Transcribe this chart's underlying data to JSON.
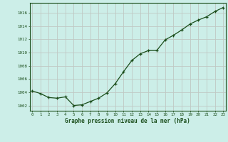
{
  "hours": [
    0,
    1,
    2,
    3,
    4,
    5,
    6,
    7,
    8,
    9,
    10,
    11,
    12,
    13,
    14,
    15,
    16,
    17,
    18,
    19,
    20,
    21,
    22,
    23
  ],
  "pressure": [
    1004.2,
    1003.8,
    1003.2,
    1003.1,
    1003.3,
    1002.0,
    1002.1,
    1002.6,
    1003.1,
    1003.9,
    1005.3,
    1007.1,
    1008.8,
    1009.8,
    1010.3,
    1010.3,
    1011.9,
    1012.6,
    1013.4,
    1014.3,
    1014.9,
    1015.4,
    1016.2,
    1016.8
  ],
  "line_color": "#1a4d1a",
  "marker": "P",
  "marker_size": 2.8,
  "bg_color": "#cceee8",
  "plot_bg_color": "#cceee8",
  "grid_color": "#c0c8c4",
  "title": "Graphe pression niveau de la mer (hPa)",
  "ylabel_values": [
    1002,
    1004,
    1006,
    1008,
    1010,
    1012,
    1014,
    1016
  ],
  "ylim": [
    1001.2,
    1017.5
  ],
  "xlim": [
    -0.3,
    23.3
  ],
  "linewidth": 0.9
}
